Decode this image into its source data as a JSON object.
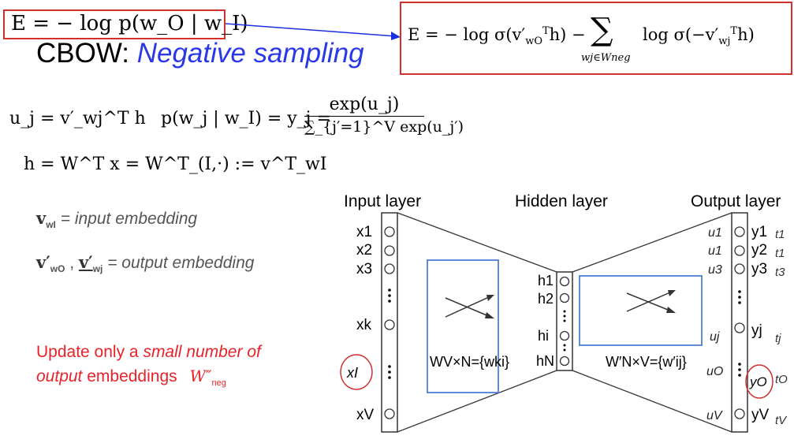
{
  "energy_formula": "E = − log p(w_O | w_I)",
  "negative_formula": {
    "lhs": "E = − log σ(v′",
    "lhs_sub": "wO",
    "lhs_sup": "T",
    "lhs_tail": "h) −",
    "sum_symbol": "∑",
    "sum_sub": "wj∈Wneg",
    "rhs": "log σ(−v′",
    "rhs_sub": "wj",
    "rhs_sup": "T",
    "rhs_tail": "h)"
  },
  "title": {
    "prefix": "CBOW: ",
    "emphasis": "Negative sampling"
  },
  "equations": {
    "u_def": "u_j = v′_wj^T h",
    "p_def": "p(w_j | w_I) = y_j =",
    "frac_num": "exp(u_j)",
    "frac_den": "∑_{j′=1}^V exp(u_j′)",
    "h_def": "h = W^T x = W^T_(I,·) := v^T_wI"
  },
  "embeddings": {
    "input_symbol": "v",
    "input_sub": "wI",
    "input_text": "= input embedding",
    "output_symbol_1": "v′",
    "output_sub_1": "wO",
    "output_symbol_2": "v′",
    "output_sub_2": "wj",
    "output_text": "= output embedding"
  },
  "update_note": {
    "line1_prefix": "Update only a ",
    "line1_emphasis": "small number of",
    "line2_emphasis": "output",
    "line2_suffix": " embeddings",
    "set_symbol": "W″",
    "set_sub": "neg"
  },
  "diagram": {
    "layer_titles": [
      "Input layer",
      "Hidden layer",
      "Output layer"
    ],
    "input_labels": [
      "x1",
      "x2",
      "x3",
      "xk",
      "xV"
    ],
    "input_highlight": "xI",
    "hidden_labels": [
      "h1",
      "h2",
      "hi",
      "hN"
    ],
    "output_u_labels": [
      "u1",
      "u1",
      "u3",
      "uj",
      "uO",
      "uV"
    ],
    "output_y_labels": [
      "y1",
      "y2",
      "y3",
      "yj",
      "yO",
      "yV"
    ],
    "output_t_labels": [
      "t1",
      "t1",
      "t3",
      "tj",
      "tO",
      "tV"
    ],
    "w_in": "WV×N={wki}",
    "w_out": "W′N×V={w′ij}",
    "colors": {
      "accent_red": "#d0312d",
      "accent_blue": "#2a39e8",
      "box_blue": "#4f7fcf"
    }
  }
}
